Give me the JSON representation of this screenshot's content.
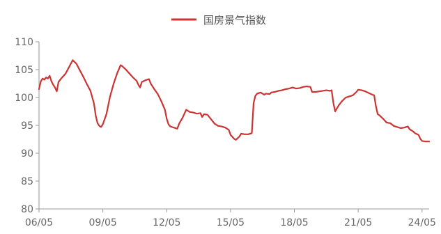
{
  "colors": {
    "series": "#cc3333",
    "axis": "#999999",
    "tick_text": "#666666"
  },
  "chart_data": {
    "type": "line",
    "legend_position": "top-center",
    "grid": false,
    "x_ticks": [
      "06/05",
      "09/05",
      "12/05",
      "15/05",
      "18/05",
      "21/05",
      "24/05"
    ],
    "x_tick_values": [
      2006.333,
      2009.333,
      2012.333,
      2015.333,
      2018.333,
      2021.333,
      2024.333
    ],
    "xlim": [
      2006.333,
      2024.667
    ],
    "ylim": [
      80,
      110
    ],
    "y_ticks": [
      80,
      85,
      90,
      95,
      100,
      105,
      110
    ],
    "series": [
      {
        "name": "国房景气指数",
        "color": "#cc3333",
        "points": [
          [
            2006.333,
            101.5
          ],
          [
            2006.417,
            102.9
          ],
          [
            2006.5,
            103.4
          ],
          [
            2006.583,
            103.2
          ],
          [
            2006.667,
            103.6
          ],
          [
            2006.75,
            103.4
          ],
          [
            2006.833,
            103.9
          ],
          [
            2006.917,
            102.9
          ],
          [
            2007.0,
            102.3
          ],
          [
            2007.083,
            101.8
          ],
          [
            2007.167,
            101.1
          ],
          [
            2007.25,
            102.8
          ],
          [
            2007.417,
            103.6
          ],
          [
            2007.583,
            104.3
          ],
          [
            2007.75,
            105.5
          ],
          [
            2007.917,
            106.7
          ],
          [
            2008.083,
            106.1
          ],
          [
            2008.25,
            104.9
          ],
          [
            2008.417,
            103.7
          ],
          [
            2008.583,
            102.4
          ],
          [
            2008.75,
            101.2
          ],
          [
            2008.917,
            98.9
          ],
          [
            2009.0,
            96.7
          ],
          [
            2009.083,
            95.4
          ],
          [
            2009.167,
            94.9
          ],
          [
            2009.25,
            94.7
          ],
          [
            2009.333,
            95.2
          ],
          [
            2009.5,
            97.0
          ],
          [
            2009.667,
            100.1
          ],
          [
            2009.833,
            102.4
          ],
          [
            2010.0,
            104.3
          ],
          [
            2010.167,
            105.8
          ],
          [
            2010.25,
            105.6
          ],
          [
            2010.417,
            105.0
          ],
          [
            2010.583,
            104.3
          ],
          [
            2010.75,
            103.6
          ],
          [
            2010.917,
            103.0
          ],
          [
            2011.0,
            102.3
          ],
          [
            2011.083,
            101.8
          ],
          [
            2011.167,
            102.8
          ],
          [
            2011.333,
            103.1
          ],
          [
            2011.5,
            103.3
          ],
          [
            2011.583,
            102.5
          ],
          [
            2011.75,
            101.5
          ],
          [
            2011.917,
            100.6
          ],
          [
            2012.083,
            99.3
          ],
          [
            2012.25,
            97.8
          ],
          [
            2012.333,
            96.2
          ],
          [
            2012.417,
            95.2
          ],
          [
            2012.5,
            94.8
          ],
          [
            2012.667,
            94.6
          ],
          [
            2012.833,
            94.4
          ],
          [
            2012.917,
            95.3
          ],
          [
            2013.083,
            96.4
          ],
          [
            2013.25,
            97.8
          ],
          [
            2013.417,
            97.4
          ],
          [
            2013.583,
            97.3
          ],
          [
            2013.75,
            97.1
          ],
          [
            2013.917,
            97.2
          ],
          [
            2014.0,
            96.5
          ],
          [
            2014.083,
            97.0
          ],
          [
            2014.25,
            96.9
          ],
          [
            2014.417,
            96.1
          ],
          [
            2014.583,
            95.3
          ],
          [
            2014.75,
            94.9
          ],
          [
            2014.917,
            94.8
          ],
          [
            2015.083,
            94.6
          ],
          [
            2015.25,
            94.2
          ],
          [
            2015.333,
            93.3
          ],
          [
            2015.5,
            92.6
          ],
          [
            2015.583,
            92.4
          ],
          [
            2015.75,
            93.0
          ],
          [
            2015.833,
            93.5
          ],
          [
            2016.0,
            93.4
          ],
          [
            2016.167,
            93.4
          ],
          [
            2016.333,
            93.6
          ],
          [
            2016.417,
            99.0
          ],
          [
            2016.5,
            100.3
          ],
          [
            2016.583,
            100.7
          ],
          [
            2016.75,
            100.9
          ],
          [
            2016.917,
            100.5
          ],
          [
            2017.0,
            100.7
          ],
          [
            2017.167,
            100.6
          ],
          [
            2017.25,
            100.9
          ],
          [
            2017.417,
            101.0
          ],
          [
            2017.583,
            101.2
          ],
          [
            2017.75,
            101.3
          ],
          [
            2017.917,
            101.5
          ],
          [
            2018.083,
            101.6
          ],
          [
            2018.25,
            101.8
          ],
          [
            2018.417,
            101.6
          ],
          [
            2018.583,
            101.7
          ],
          [
            2018.75,
            101.9
          ],
          [
            2018.917,
            102.0
          ],
          [
            2019.083,
            101.9
          ],
          [
            2019.167,
            101.0
          ],
          [
            2019.333,
            101.0
          ],
          [
            2019.5,
            101.1
          ],
          [
            2019.667,
            101.2
          ],
          [
            2019.833,
            101.3
          ],
          [
            2020.0,
            101.2
          ],
          [
            2020.083,
            101.3
          ],
          [
            2020.167,
            99.0
          ],
          [
            2020.25,
            97.5
          ],
          [
            2020.417,
            98.6
          ],
          [
            2020.583,
            99.4
          ],
          [
            2020.75,
            100.0
          ],
          [
            2020.917,
            100.2
          ],
          [
            2021.083,
            100.4
          ],
          [
            2021.25,
            101.0
          ],
          [
            2021.333,
            101.4
          ],
          [
            2021.5,
            101.3
          ],
          [
            2021.667,
            101.1
          ],
          [
            2021.833,
            100.8
          ],
          [
            2022.0,
            100.5
          ],
          [
            2022.083,
            100.4
          ],
          [
            2022.167,
            98.4
          ],
          [
            2022.25,
            97.0
          ],
          [
            2022.333,
            96.8
          ],
          [
            2022.5,
            96.2
          ],
          [
            2022.667,
            95.5
          ],
          [
            2022.833,
            95.4
          ],
          [
            2023.0,
            94.9
          ],
          [
            2023.167,
            94.7
          ],
          [
            2023.333,
            94.5
          ],
          [
            2023.5,
            94.6
          ],
          [
            2023.667,
            94.8
          ],
          [
            2023.75,
            94.3
          ],
          [
            2023.917,
            93.9
          ],
          [
            2024.0,
            93.6
          ],
          [
            2024.167,
            93.3
          ],
          [
            2024.25,
            92.6
          ],
          [
            2024.333,
            92.2
          ],
          [
            2024.5,
            92.1
          ],
          [
            2024.667,
            92.1
          ]
        ]
      }
    ]
  }
}
